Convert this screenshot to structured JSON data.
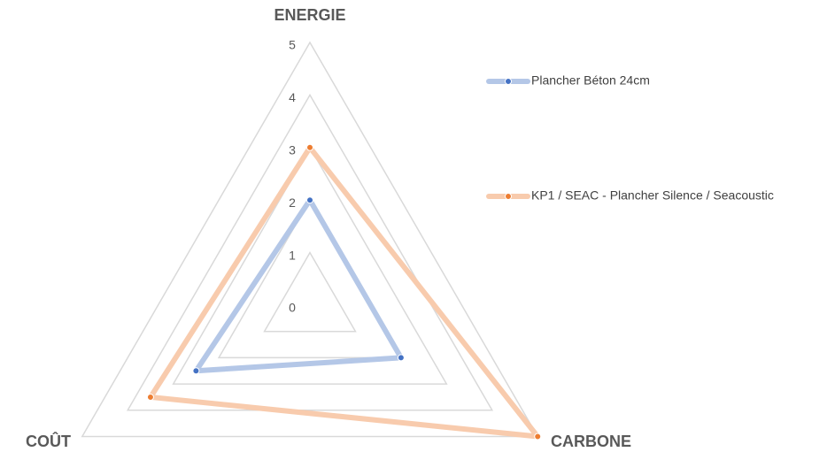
{
  "chart_data": {
    "type": "radar",
    "categories": [
      "ENERGIE",
      "CARBONE",
      "COÛT"
    ],
    "ylim": [
      0,
      5
    ],
    "yticks": [
      0,
      1,
      2,
      3,
      4,
      5
    ],
    "grid": true,
    "series": [
      {
        "name": "Plancher Béton 24cm",
        "color": "#b4c7e7",
        "marker_color": "#4472c4",
        "values": [
          2,
          2,
          2.5
        ]
      },
      {
        "name": "KP1 / SEAC - Plancher Silence / Seacoustic",
        "color": "#f8cbad",
        "marker_color": "#ed7d31",
        "values": [
          3,
          5,
          3.5
        ]
      }
    ]
  }
}
